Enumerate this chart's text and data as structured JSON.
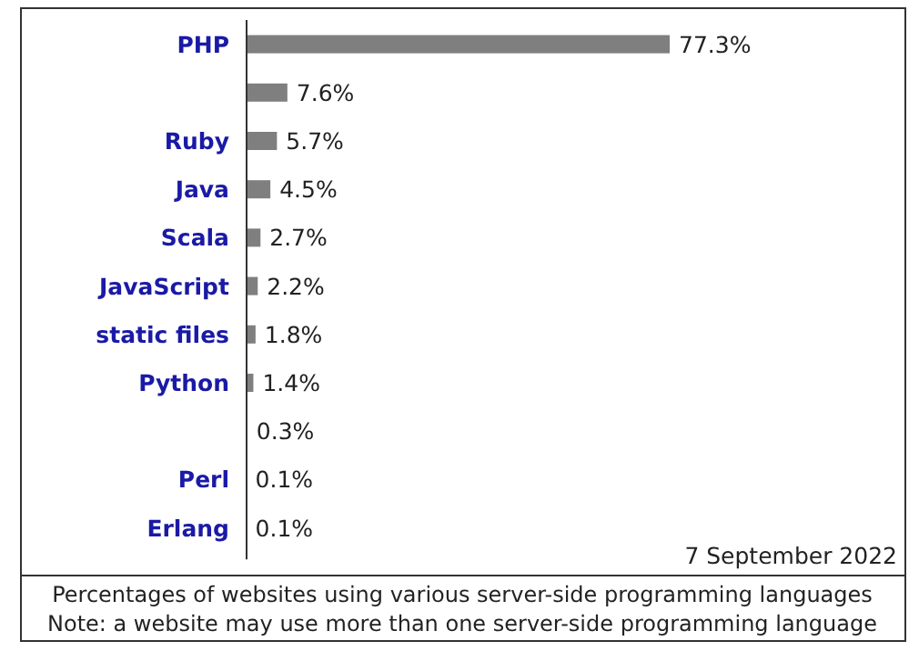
{
  "chart_data": {
    "type": "bar",
    "orientation": "horizontal",
    "categories": [
      "PHP",
      null,
      "Ruby",
      "Java",
      "Scala",
      "JavaScript",
      "static files",
      "Python",
      null,
      "Perl",
      "Erlang"
    ],
    "values": [
      77.3,
      7.6,
      5.7,
      4.5,
      2.7,
      2.2,
      1.8,
      1.4,
      0.3,
      0.1,
      0.1
    ],
    "value_labels": [
      "77.3%",
      "7.6%",
      "5.7%",
      "4.5%",
      "2.7%",
      "2.2%",
      "1.8%",
      "1.4%",
      "0.3%",
      "0.1%",
      "0.1%"
    ],
    "color": "#7f7f7f",
    "annotations": [
      "7 September 2022",
      "Percentages of websites using various server-side programming languages",
      "Note: a website may use more than one server-side programming language"
    ]
  }
}
